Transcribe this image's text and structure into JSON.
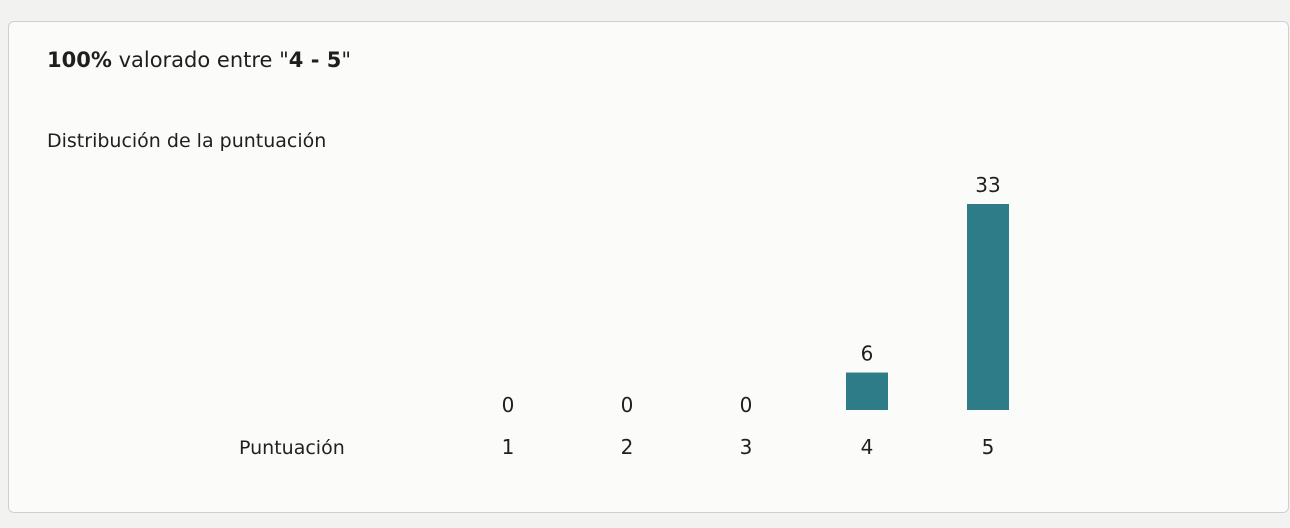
{
  "header": {
    "percent": "100%",
    "mid_text": " valorado entre \"",
    "range": "4 - 5",
    "end_quote": "\""
  },
  "subtitle": "Distribución de la puntuación",
  "chart_data": {
    "type": "bar",
    "xlabel": "Puntuación",
    "categories": [
      "1",
      "2",
      "3",
      "4",
      "5"
    ],
    "values": [
      0,
      0,
      0,
      6,
      33
    ],
    "color": "#2e7c87"
  }
}
